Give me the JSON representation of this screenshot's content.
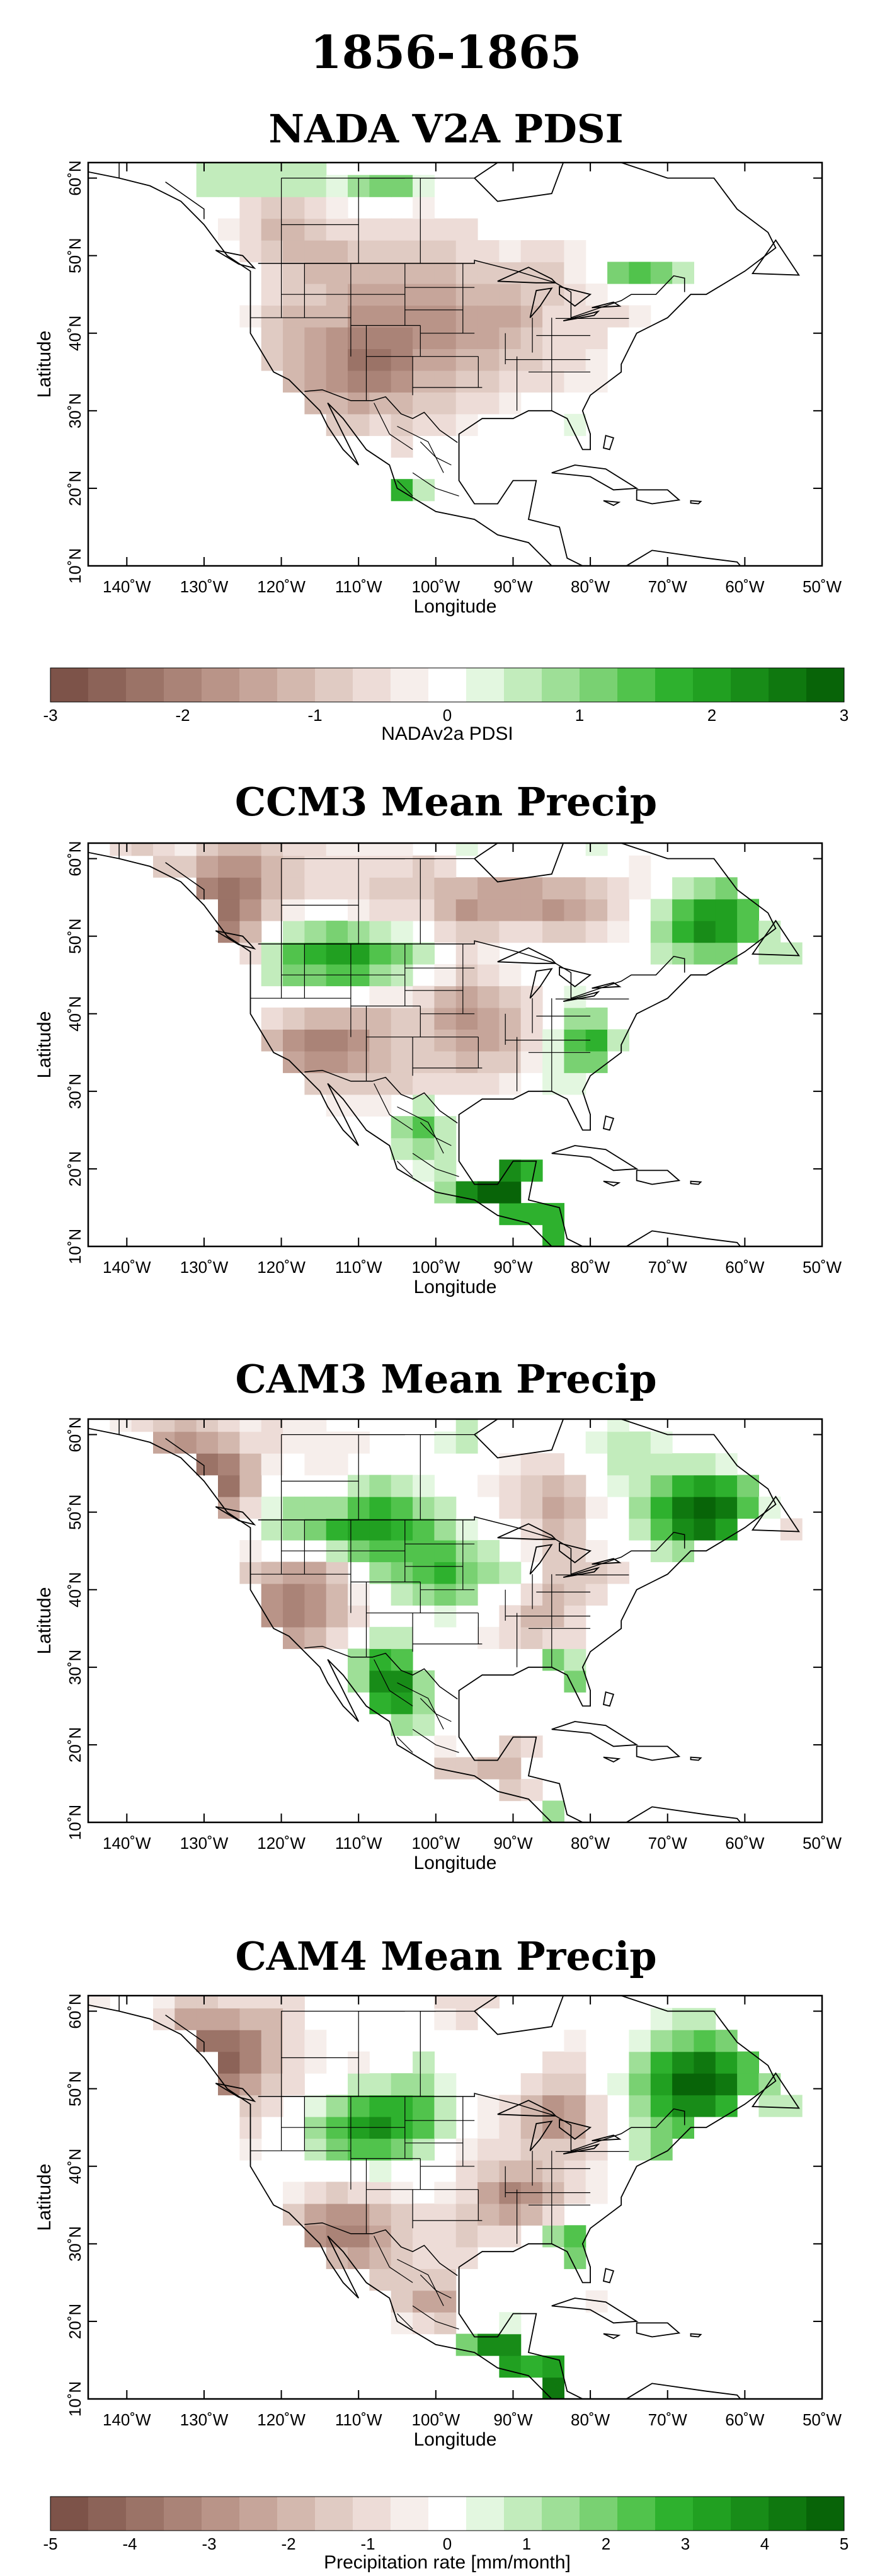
{
  "figure": {
    "title": "1856-1865"
  },
  "axes": {
    "xlabel": "Longitude",
    "ylabel": "Latitude",
    "lon_ticks": [
      "140˚W",
      "130˚W",
      "120˚W",
      "110˚W",
      "100˚W",
      "90˚W",
      "80˚W",
      "70˚W",
      "60˚W",
      "50˚W"
    ],
    "lat_ticks": [
      "10˚N",
      "20˚N",
      "30˚N",
      "40˚N",
      "50˚N",
      "60˚N"
    ],
    "lon_range": [
      -145,
      -50
    ],
    "lat_range": [
      10,
      62
    ]
  },
  "panels": [
    {
      "title": "NADA V2A PDSI",
      "kind": "pdsi"
    },
    {
      "title": "CCM3 Mean Precip",
      "kind": "ccm3"
    },
    {
      "title": "CAM3 Mean Precip",
      "kind": "cam3"
    },
    {
      "title": "CAM4 Mean Precip",
      "kind": "cam4"
    }
  ],
  "colorbars": [
    {
      "label": "NADAv2a PDSI",
      "tick_labels": [
        "-3",
        "-2",
        "-1",
        "0",
        "1",
        "2",
        "3"
      ],
      "range": [
        -3,
        3
      ],
      "colors": [
        "#7d5349",
        "#8c6358",
        "#9b7367",
        "#aa8377",
        "#b99488",
        "#c6a59a",
        "#d3b8ae",
        "#e0cbc3",
        "#eddcd7",
        "#f6eeeb",
        "#ffffff",
        "#e3f7e0",
        "#c2ecbc",
        "#9edf97",
        "#79d172",
        "#51c34c",
        "#2eb12e",
        "#21a021",
        "#188c18",
        "#0f780f",
        "#086408"
      ]
    },
    {
      "label": "Precipitation rate [mm/month]",
      "tick_labels": [
        "-5",
        "-4",
        "-3",
        "-2",
        "-1",
        "0",
        "1",
        "2",
        "3",
        "4",
        "5"
      ],
      "range": [
        -5,
        5
      ],
      "colors": [
        "#7d5349",
        "#8c6358",
        "#9b7367",
        "#aa8377",
        "#b99488",
        "#c6a59a",
        "#d3b8ae",
        "#e0cbc3",
        "#eddcd7",
        "#f6eeeb",
        "#ffffff",
        "#e3f7e0",
        "#c2ecbc",
        "#9edf97",
        "#79d172",
        "#51c34c",
        "#2eb12e",
        "#21a021",
        "#188c18",
        "#0f780f",
        "#086408"
      ]
    }
  ]
}
